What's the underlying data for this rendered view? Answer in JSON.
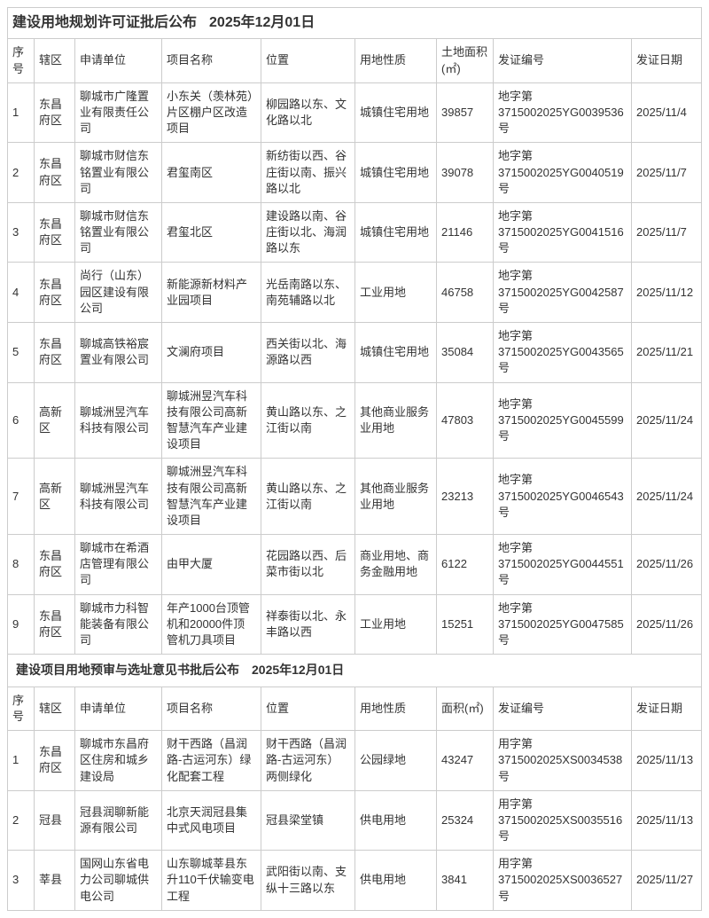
{
  "tables": [
    {
      "title": "建设用地规划许可证批后公布",
      "date": "2025年12月01日",
      "columns": [
        "序号",
        "辖区",
        "申请单位",
        "项目名称",
        "位置",
        "用地性质",
        "土地面积(㎡)",
        "发证编号",
        "发证日期"
      ],
      "rows": [
        [
          "1",
          "东昌府区",
          "聊城市广隆置业有限责任公司",
          "小东关（羡林苑）片区棚户区改造项目",
          "柳园路以东、文化路以北",
          "城镇住宅用地",
          "39857",
          "地字第3715002025YG0039536号",
          "2025/11/4"
        ],
        [
          "2",
          "东昌府区",
          "聊城市财信东铭置业有限公司",
          "君玺南区",
          "新纺街以西、谷庄街以南、振兴路以北",
          "城镇住宅用地",
          "39078",
          "地字第3715002025YG0040519号",
          "2025/11/7"
        ],
        [
          "3",
          "东昌府区",
          "聊城市财信东铭置业有限公司",
          "君玺北区",
          "建设路以南、谷庄街以北、海润路以东",
          "城镇住宅用地",
          "21146",
          "地字第3715002025YG0041516号",
          "2025/11/7"
        ],
        [
          "4",
          "东昌府区",
          "尚行（山东）园区建设有限公司",
          "新能源新材料产业园项目",
          "光岳南路以东、南苑辅路以北",
          "工业用地",
          "46758",
          "地字第3715002025YG0042587号",
          "2025/11/12"
        ],
        [
          "5",
          "东昌府区",
          "聊城高铁裕宸置业有限公司",
          "文澜府项目",
          "西关街以北、海源路以西",
          "城镇住宅用地",
          "35084",
          "地字第3715002025YG0043565号",
          "2025/11/21"
        ],
        [
          "6",
          "高新区",
          "聊城洲昱汽车科技有限公司",
          "聊城洲昱汽车科技有限公司高新智慧汽车产业建设项目",
          "黄山路以东、之江街以南",
          "其他商业服务业用地",
          "47803",
          "地字第3715002025YG0045599号",
          "2025/11/24"
        ],
        [
          "7",
          "高新区",
          "聊城洲昱汽车科技有限公司",
          "聊城洲昱汽车科技有限公司高新智慧汽车产业建设项目",
          "黄山路以东、之江街以南",
          "其他商业服务业用地",
          "23213",
          "地字第3715002025YG0046543号",
          "2025/11/24"
        ],
        [
          "8",
          "东昌府区",
          "聊城市在希酒店管理有限公司",
          "由甲大厦",
          "花园路以西、后菜市街以北",
          "商业用地、商务金融用地",
          "6122",
          "地字第3715002025YG0044551号",
          "2025/11/26"
        ],
        [
          "9",
          "东昌府区",
          "聊城市力科智能装备有限公司",
          "年产1000台顶管机和20000件顶管机刀具项目",
          "祥泰街以北、永丰路以西",
          "工业用地",
          "15251",
          "地字第3715002025YG0047585号",
          "2025/11/26"
        ]
      ]
    },
    {
      "title": "建设项目用地预审与选址意见书批后公布",
      "date": "2025年12月01日",
      "columns": [
        "序号",
        "辖区",
        "申请单位",
        "项目名称",
        "位置",
        "用地性质",
        "面积(㎡)",
        "发证编号",
        "发证日期"
      ],
      "rows": [
        [
          "1",
          "东昌府区",
          "聊城市东昌府区住房和城乡建设局",
          "财干西路（昌润路-古运河东）绿化配套工程",
          "财干西路（昌润路-古运河东）两侧绿化",
          "公园绿地",
          "43247",
          "用字第3715002025XS0034538号",
          "2025/11/13"
        ],
        [
          "2",
          "冠县",
          "冠县润聊新能源有限公司",
          "北京天润冠县集中式风电项目",
          "冠县梁堂镇",
          "供电用地",
          "25324",
          "用字第3715002025XS0035516号",
          "2025/11/13"
        ],
        [
          "3",
          "莘县",
          "国网山东省电力公司聊城供电公司",
          "山东聊城莘县东升110千伏输变电工程",
          "武阳街以南、支纵十三路以东",
          "供电用地",
          "3841",
          "用字第3715002025XS0036527号",
          "2025/11/27"
        ]
      ]
    }
  ]
}
